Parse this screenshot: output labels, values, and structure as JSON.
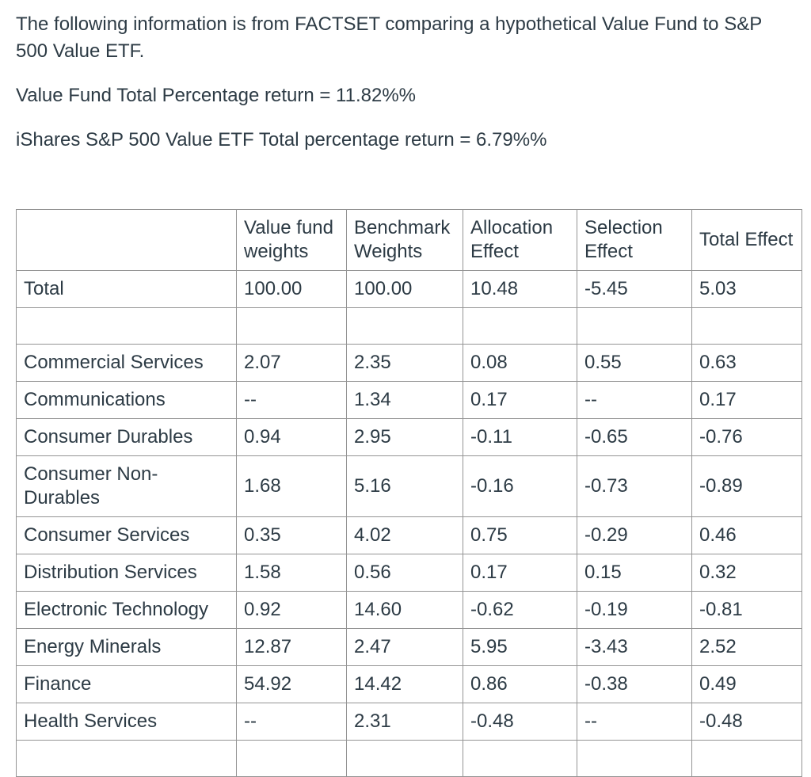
{
  "colors": {
    "background": "#ffffff",
    "text": "#2d3b45",
    "table_border": "#949494"
  },
  "intro": {
    "paragraph1": "The following information is from FACTSET comparing a hypothetical Value Fund to S&P 500 Value ETF.",
    "paragraph2": "Value Fund Total Percentage return = 11.82%%",
    "paragraph3": "iShares S&P 500 Value ETF Total percentage return = 6.79%%"
  },
  "table": {
    "columns": [
      "",
      "Value fund weights",
      "Benchmark Weights",
      "Allocation Effect",
      "Selection Effect",
      "Total Effect"
    ],
    "rows": [
      {
        "label": "Total",
        "values": [
          "100.00",
          "100.00",
          "10.48",
          "-5.45",
          "5.03"
        ]
      },
      {
        "label": "",
        "values": [
          "",
          "",
          "",
          "",
          ""
        ]
      },
      {
        "label": "Commercial Services",
        "values": [
          "2.07",
          "2.35",
          "0.08",
          "0.55",
          "0.63"
        ]
      },
      {
        "label": "Communications",
        "values": [
          "--",
          "1.34",
          "0.17",
          "--",
          "0.17"
        ]
      },
      {
        "label": "Consumer Durables",
        "values": [
          "0.94",
          "2.95",
          "-0.11",
          "-0.65",
          "-0.76"
        ]
      },
      {
        "label": "Consumer Non-\nDurables",
        "values": [
          "1.68",
          "5.16",
          "-0.16",
          "-0.73",
          "-0.89"
        ]
      },
      {
        "label": "Consumer Services",
        "values": [
          "0.35",
          "4.02",
          "0.75",
          "-0.29",
          "0.46"
        ]
      },
      {
        "label": "Distribution Services",
        "values": [
          "1.58",
          "0.56",
          "0.17",
          "0.15",
          "0.32"
        ]
      },
      {
        "label": "Electronic Technology",
        "values": [
          "0.92",
          "14.60",
          "-0.62",
          "-0.19",
          "-0.81"
        ]
      },
      {
        "label": "Energy Minerals",
        "values": [
          "12.87",
          "2.47",
          "5.95",
          "-3.43",
          "2.52"
        ]
      },
      {
        "label": "Finance",
        "values": [
          "54.92",
          "14.42",
          "0.86",
          "-0.38",
          "0.49"
        ]
      },
      {
        "label": "Health Services",
        "values": [
          "--",
          "2.31",
          "-0.48",
          "--",
          "-0.48"
        ]
      },
      {
        "label": "",
        "values": [
          "",
          "",
          "",
          "",
          ""
        ]
      }
    ]
  }
}
